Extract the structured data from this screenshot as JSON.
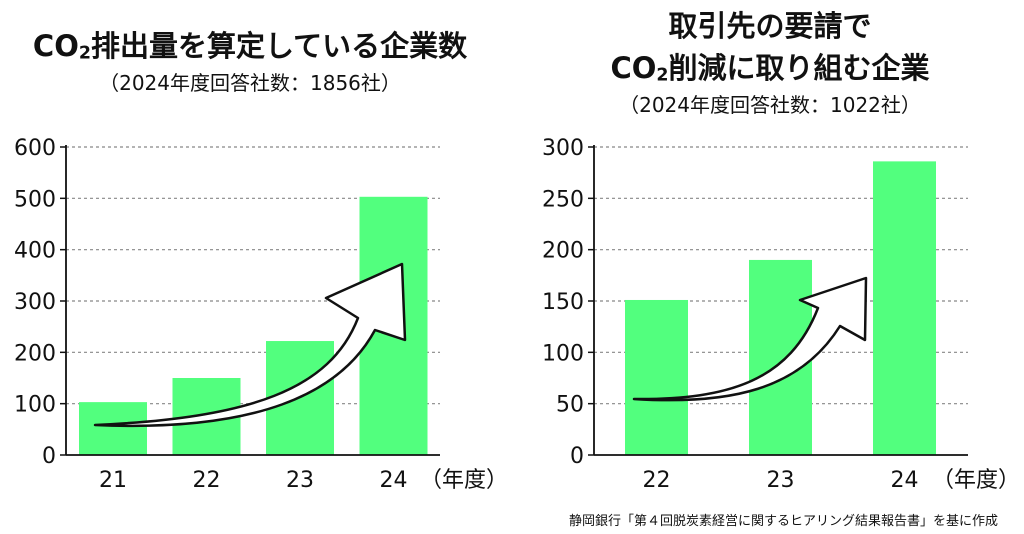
{
  "colors": {
    "bar": "#52ff7e",
    "grid": "#888888",
    "axis": "#111111",
    "arrow_fill": "#ffffff",
    "arrow_stroke": "#111111"
  },
  "charts": [
    {
      "title_line1_pre": "CO",
      "title_line1_sub": "2",
      "title_line1_post": "排出量を算定している企業数",
      "subtitle": "（2024年度回答社数：1856社）"
    },
    {
      "title_line1": "取引先の要請で",
      "title_line2_pre": "CO",
      "title_line2_sub": "2",
      "title_line2_post": "削減に取り組む企業",
      "subtitle": "（2024年度回答社数：1022社）"
    }
  ],
  "chart_data": [
    {
      "type": "bar",
      "title": "CO2排出量を算定している企業数",
      "subtitle": "（2024年度回答社数：1856社）",
      "categories": [
        "21",
        "22",
        "23",
        "24"
      ],
      "values": [
        103,
        150,
        222,
        503
      ],
      "xlabel": "（年度）",
      "ylim": [
        0,
        600
      ],
      "yticks": [
        0,
        100,
        200,
        300,
        400,
        500,
        600
      ],
      "grid": true,
      "annotation": "upward-trend-arrow"
    },
    {
      "type": "bar",
      "title": "取引先の要請でCO2削減に取り組む企業",
      "subtitle": "（2024年度回答社数：1022社）",
      "categories": [
        "22",
        "23",
        "24"
      ],
      "values": [
        151,
        190,
        286
      ],
      "xlabel": "（年度）",
      "ylim": [
        0,
        300
      ],
      "yticks": [
        0,
        50,
        100,
        150,
        200,
        250,
        300
      ],
      "grid": true,
      "annotation": "upward-trend-arrow"
    }
  ],
  "source": "静岡銀行「第４回脱炭素経営に関するヒアリング結果報告書」を基に作成"
}
